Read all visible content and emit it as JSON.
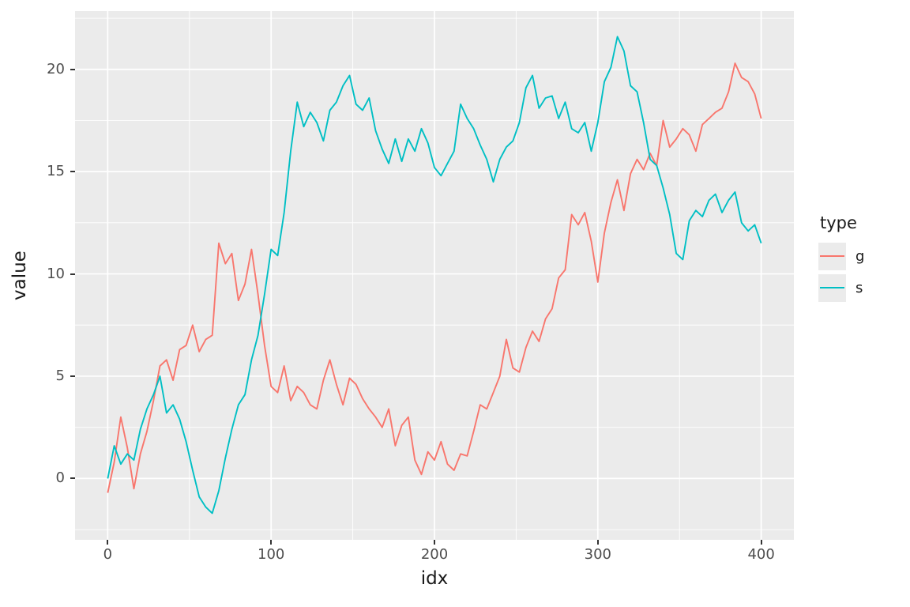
{
  "chart_data": {
    "type": "line",
    "title": "",
    "xlabel": "idx",
    "ylabel": "value",
    "legend_title": "type",
    "legend_position": "right",
    "panel_background": "#EBEBEB",
    "grid_color": "#FFFFFF",
    "axis_text_color": "#4D4D4D",
    "axis_title_color": "#1A1A1A",
    "grid": true,
    "xlim": [
      -20,
      420
    ],
    "ylim": [
      -3,
      22.85
    ],
    "x_ticks": [
      0,
      100,
      200,
      300,
      400
    ],
    "x_tick_labels": [
      "0",
      "100",
      "200",
      "300",
      "400"
    ],
    "x_minor_ticks": [
      50,
      150,
      250,
      350
    ],
    "y_ticks": [
      0,
      5,
      10,
      15,
      20
    ],
    "y_tick_labels": [
      "0",
      "5",
      "10",
      "15",
      "20"
    ],
    "y_minor_ticks": [
      -2.5,
      2.5,
      7.5,
      12.5,
      17.5,
      22.5
    ],
    "x": [
      0,
      4,
      8,
      12,
      16,
      20,
      24,
      28,
      32,
      36,
      40,
      44,
      48,
      52,
      56,
      60,
      64,
      68,
      72,
      76,
      80,
      84,
      88,
      92,
      96,
      100,
      104,
      108,
      112,
      116,
      120,
      124,
      128,
      132,
      136,
      140,
      144,
      148,
      152,
      156,
      160,
      164,
      168,
      172,
      176,
      180,
      184,
      188,
      192,
      196,
      200,
      204,
      208,
      212,
      216,
      220,
      224,
      228,
      232,
      236,
      240,
      244,
      248,
      252,
      256,
      260,
      264,
      268,
      272,
      276,
      280,
      284,
      288,
      292,
      296,
      300,
      304,
      308,
      312,
      316,
      320,
      324,
      328,
      332,
      336,
      340,
      344,
      348,
      352,
      356,
      360,
      364,
      368,
      372,
      376,
      380,
      384,
      388,
      392,
      396,
      400
    ],
    "series": [
      {
        "name": "g",
        "color": "#F8766D",
        "values": [
          -0.7,
          0.8,
          3.0,
          1.5,
          -0.5,
          1.2,
          2.3,
          3.8,
          5.5,
          5.8,
          4.8,
          6.3,
          6.5,
          7.5,
          6.2,
          6.8,
          7.0,
          11.5,
          10.5,
          11.0,
          8.7,
          9.5,
          11.2,
          9.0,
          6.5,
          4.5,
          4.2,
          5.5,
          3.8,
          4.5,
          4.2,
          3.6,
          3.4,
          4.8,
          5.8,
          4.6,
          3.6,
          4.9,
          4.6,
          3.9,
          3.4,
          3.0,
          2.5,
          3.4,
          1.6,
          2.6,
          3.0,
          0.9,
          0.2,
          1.3,
          0.9,
          1.8,
          0.7,
          0.4,
          1.2,
          1.1,
          2.3,
          3.6,
          3.4,
          4.2,
          5.0,
          6.8,
          5.4,
          5.2,
          6.4,
          7.2,
          6.7,
          7.8,
          8.3,
          9.8,
          10.2,
          12.9,
          12.4,
          13.0,
          11.6,
          9.6,
          12.0,
          13.5,
          14.6,
          13.1,
          14.9,
          15.6,
          15.1,
          15.9,
          15.3,
          17.5,
          16.2,
          16.6,
          17.1,
          16.8,
          16.0,
          17.3,
          17.6,
          17.9,
          18.1,
          18.9,
          20.3,
          19.6,
          19.4,
          18.8,
          17.6
        ]
      },
      {
        "name": "s",
        "color": "#00BFC4",
        "values": [
          0.0,
          1.6,
          0.7,
          1.2,
          0.9,
          2.4,
          3.4,
          4.1,
          5.0,
          3.2,
          3.6,
          2.9,
          1.8,
          0.4,
          -0.9,
          -1.4,
          -1.7,
          -0.6,
          1.0,
          2.4,
          3.6,
          4.1,
          5.8,
          7.0,
          9.0,
          11.2,
          10.9,
          13.0,
          16.0,
          18.4,
          17.2,
          17.9,
          17.4,
          16.5,
          18.0,
          18.4,
          19.2,
          19.7,
          18.3,
          18.0,
          18.6,
          17.0,
          16.1,
          15.4,
          16.6,
          15.5,
          16.6,
          16.0,
          17.1,
          16.4,
          15.2,
          14.8,
          15.4,
          16.0,
          18.3,
          17.6,
          17.1,
          16.3,
          15.6,
          14.5,
          15.6,
          16.2,
          16.5,
          17.4,
          19.1,
          19.7,
          18.1,
          18.6,
          18.7,
          17.6,
          18.4,
          17.1,
          16.9,
          17.4,
          16.0,
          17.4,
          19.4,
          20.1,
          21.6,
          20.9,
          19.2,
          18.9,
          17.4,
          15.6,
          15.3,
          14.2,
          12.9,
          11.0,
          10.7,
          12.6,
          13.1,
          12.8,
          13.6,
          13.9,
          13.0,
          13.6,
          14.0,
          12.5,
          12.1,
          12.4,
          11.5
        ]
      }
    ]
  }
}
